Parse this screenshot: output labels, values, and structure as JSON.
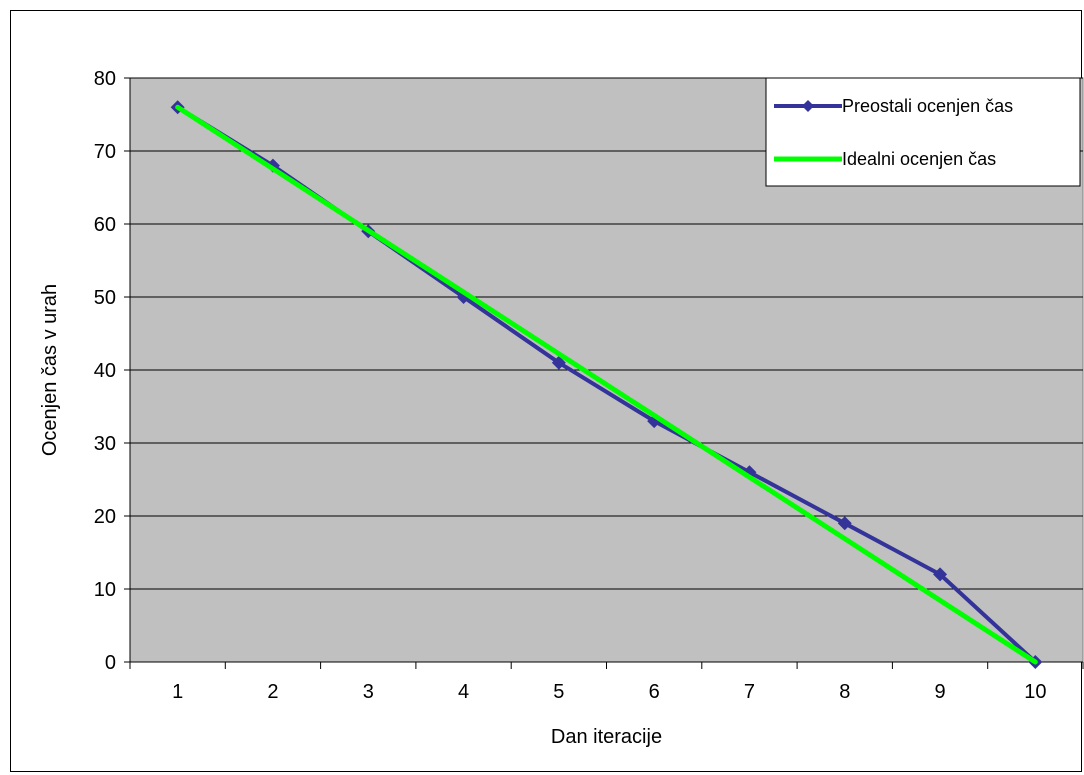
{
  "chart_data": {
    "type": "line",
    "xlabel": "Dan iteracije",
    "ylabel": "Ocenjen čas v urah",
    "categories": [
      "1",
      "2",
      "3",
      "4",
      "5",
      "6",
      "7",
      "8",
      "9",
      "10"
    ],
    "ylim": [
      0,
      80
    ],
    "yticks": [
      0,
      10,
      20,
      30,
      40,
      50,
      60,
      70,
      80
    ],
    "grid": true,
    "legend_position": "top-right",
    "plot_background": "#C0C0C0",
    "series": [
      {
        "name": "Preostali ocenjen čas",
        "color": "#333399",
        "marker": "diamond",
        "values": [
          76,
          68,
          59,
          50,
          41,
          33,
          26,
          19,
          12,
          0
        ]
      },
      {
        "name": "Idealni ocenjen čas",
        "color": "#00FF00",
        "marker": "none",
        "values": [
          76,
          67.56,
          59.11,
          50.67,
          42.22,
          33.78,
          25.33,
          16.89,
          8.44,
          0
        ]
      }
    ]
  }
}
